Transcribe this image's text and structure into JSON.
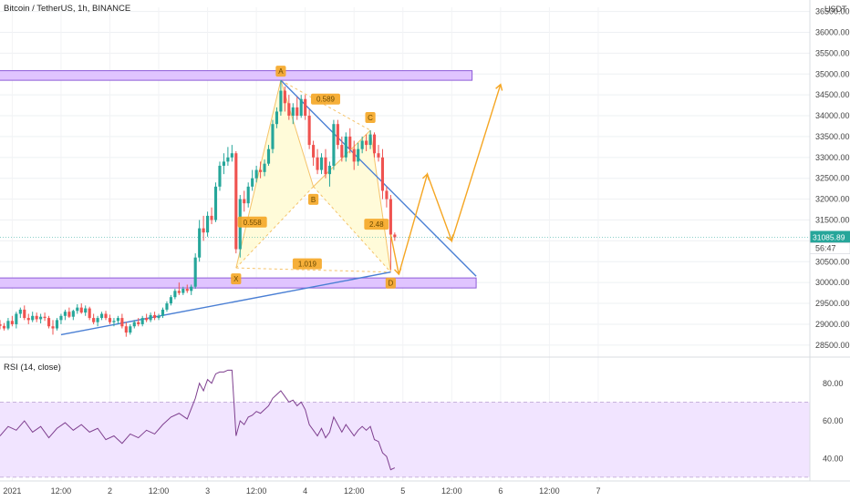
{
  "header": {
    "title": "Bitcoin / TetherUS, 1h, BINANCE",
    "currency": "USDT"
  },
  "chart_data": {
    "type": "candlestick",
    "price_ticks": [
      28500,
      29000,
      29500,
      30000,
      30500,
      31000,
      31500,
      32000,
      32500,
      33000,
      33500,
      34000,
      34500,
      35000,
      35500,
      36000,
      36500
    ],
    "price_tick_labels": [
      "28500.00",
      "29000.00",
      "29500.00",
      "30000.00",
      "30500.00",
      "31000.00",
      "31500.00",
      "32000.00",
      "32500.00",
      "33000.00",
      "33500.00",
      "34000.00",
      "34500.00",
      "35000.00",
      "35500.00",
      "36000.00",
      "36500.00"
    ],
    "price_range": [
      28300,
      36600
    ],
    "time_range_hours": [
      -3,
      196
    ],
    "time_ticks": [
      {
        "hour": 0,
        "label": "2021"
      },
      {
        "hour": 12,
        "label": "12:00"
      },
      {
        "hour": 24,
        "label": "2"
      },
      {
        "hour": 36,
        "label": "12:00"
      },
      {
        "hour": 48,
        "label": "3"
      },
      {
        "hour": 60,
        "label": "12:00"
      },
      {
        "hour": 72,
        "label": "4"
      },
      {
        "hour": 84,
        "label": "12:00"
      },
      {
        "hour": 96,
        "label": "5"
      },
      {
        "hour": 108,
        "label": "12:00"
      },
      {
        "hour": 120,
        "label": "6"
      },
      {
        "hour": 132,
        "label": "12:00"
      },
      {
        "hour": 144,
        "label": "7"
      }
    ],
    "candles": [
      {
        "t": -3,
        "o": 29000,
        "h": 29100,
        "l": 28880,
        "c": 28960
      },
      {
        "t": -2,
        "o": 28960,
        "h": 29030,
        "l": 28850,
        "c": 28900
      },
      {
        "t": -1,
        "o": 28900,
        "h": 29150,
        "l": 28860,
        "c": 29080
      },
      {
        "t": 0,
        "o": 29080,
        "h": 29200,
        "l": 28950,
        "c": 29000
      },
      {
        "t": 1,
        "o": 29000,
        "h": 29300,
        "l": 28900,
        "c": 29250
      },
      {
        "t": 2,
        "o": 29250,
        "h": 29400,
        "l": 29150,
        "c": 29350
      },
      {
        "t": 3,
        "o": 29350,
        "h": 29450,
        "l": 29100,
        "c": 29150
      },
      {
        "t": 4,
        "o": 29150,
        "h": 29250,
        "l": 29000,
        "c": 29100
      },
      {
        "t": 5,
        "o": 29100,
        "h": 29300,
        "l": 29050,
        "c": 29200
      },
      {
        "t": 6,
        "o": 29200,
        "h": 29280,
        "l": 29050,
        "c": 29120
      },
      {
        "t": 7,
        "o": 29120,
        "h": 29250,
        "l": 29020,
        "c": 29180
      },
      {
        "t": 8,
        "o": 29180,
        "h": 29280,
        "l": 29080,
        "c": 29150
      },
      {
        "t": 9,
        "o": 29150,
        "h": 29200,
        "l": 28900,
        "c": 28950
      },
      {
        "t": 10,
        "o": 28950,
        "h": 29100,
        "l": 28750,
        "c": 28900
      },
      {
        "t": 11,
        "o": 28900,
        "h": 29150,
        "l": 28850,
        "c": 29100
      },
      {
        "t": 12,
        "o": 29100,
        "h": 29250,
        "l": 29000,
        "c": 29200
      },
      {
        "t": 13,
        "o": 29200,
        "h": 29350,
        "l": 29100,
        "c": 29300
      },
      {
        "t": 14,
        "o": 29300,
        "h": 29400,
        "l": 29150,
        "c": 29180
      },
      {
        "t": 15,
        "o": 29180,
        "h": 29350,
        "l": 29100,
        "c": 29320
      },
      {
        "t": 16,
        "o": 29320,
        "h": 29480,
        "l": 29250,
        "c": 29400
      },
      {
        "t": 17,
        "o": 29400,
        "h": 29500,
        "l": 29250,
        "c": 29280
      },
      {
        "t": 18,
        "o": 29280,
        "h": 29450,
        "l": 29200,
        "c": 29380
      },
      {
        "t": 19,
        "o": 29380,
        "h": 29420,
        "l": 29100,
        "c": 29150
      },
      {
        "t": 20,
        "o": 29150,
        "h": 29250,
        "l": 29000,
        "c": 29050
      },
      {
        "t": 21,
        "o": 29050,
        "h": 29200,
        "l": 28950,
        "c": 29150
      },
      {
        "t": 22,
        "o": 29150,
        "h": 29300,
        "l": 29100,
        "c": 29250
      },
      {
        "t": 23,
        "o": 29250,
        "h": 29320,
        "l": 29100,
        "c": 29150
      },
      {
        "t": 24,
        "o": 29150,
        "h": 29230,
        "l": 29000,
        "c": 29050
      },
      {
        "t": 25,
        "o": 29050,
        "h": 29150,
        "l": 28950,
        "c": 29080
      },
      {
        "t": 26,
        "o": 29080,
        "h": 29200,
        "l": 29000,
        "c": 29150
      },
      {
        "t": 27,
        "o": 29150,
        "h": 29250,
        "l": 28900,
        "c": 28950
      },
      {
        "t": 28,
        "o": 28950,
        "h": 29050,
        "l": 28700,
        "c": 28800
      },
      {
        "t": 29,
        "o": 28800,
        "h": 29000,
        "l": 28750,
        "c": 28950
      },
      {
        "t": 30,
        "o": 28950,
        "h": 29100,
        "l": 28900,
        "c": 29050
      },
      {
        "t": 31,
        "o": 29050,
        "h": 29150,
        "l": 28950,
        "c": 29000
      },
      {
        "t": 32,
        "o": 29000,
        "h": 29200,
        "l": 28950,
        "c": 29150
      },
      {
        "t": 33,
        "o": 29150,
        "h": 29250,
        "l": 29050,
        "c": 29100
      },
      {
        "t": 34,
        "o": 29100,
        "h": 29280,
        "l": 29050,
        "c": 29220
      },
      {
        "t": 35,
        "o": 29220,
        "h": 29300,
        "l": 29100,
        "c": 29150
      },
      {
        "t": 36,
        "o": 29150,
        "h": 29250,
        "l": 29100,
        "c": 29200
      },
      {
        "t": 37,
        "o": 29200,
        "h": 29400,
        "l": 29150,
        "c": 29350
      },
      {
        "t": 38,
        "o": 29350,
        "h": 29550,
        "l": 29300,
        "c": 29500
      },
      {
        "t": 39,
        "o": 29500,
        "h": 29700,
        "l": 29450,
        "c": 29650
      },
      {
        "t": 40,
        "o": 29650,
        "h": 29850,
        "l": 29600,
        "c": 29800
      },
      {
        "t": 41,
        "o": 29800,
        "h": 30000,
        "l": 29700,
        "c": 29750
      },
      {
        "t": 42,
        "o": 29750,
        "h": 29900,
        "l": 29700,
        "c": 29850
      },
      {
        "t": 43,
        "o": 29850,
        "h": 29950,
        "l": 29750,
        "c": 29800
      },
      {
        "t": 44,
        "o": 29800,
        "h": 29950,
        "l": 29700,
        "c": 29900
      },
      {
        "t": 45,
        "o": 29900,
        "h": 30700,
        "l": 29850,
        "c": 30600
      },
      {
        "t": 46,
        "o": 30600,
        "h": 31500,
        "l": 30500,
        "c": 31300
      },
      {
        "t": 47,
        "o": 31300,
        "h": 31600,
        "l": 31000,
        "c": 31200
      },
      {
        "t": 48,
        "o": 31200,
        "h": 31700,
        "l": 31100,
        "c": 31600
      },
      {
        "t": 49,
        "o": 31600,
        "h": 31800,
        "l": 31400,
        "c": 31500
      },
      {
        "t": 50,
        "o": 31500,
        "h": 32400,
        "l": 31450,
        "c": 32300
      },
      {
        "t": 51,
        "o": 32300,
        "h": 32900,
        "l": 32200,
        "c": 32800
      },
      {
        "t": 52,
        "o": 32800,
        "h": 33100,
        "l": 32600,
        "c": 32900
      },
      {
        "t": 53,
        "o": 32900,
        "h": 33250,
        "l": 32800,
        "c": 33000
      },
      {
        "t": 54,
        "o": 33000,
        "h": 33300,
        "l": 32900,
        "c": 33100
      },
      {
        "t": 55,
        "o": 33100,
        "h": 33150,
        "l": 30700,
        "c": 30800
      },
      {
        "t": 56,
        "o": 30800,
        "h": 32100,
        "l": 30600,
        "c": 32000
      },
      {
        "t": 57,
        "o": 32000,
        "h": 32200,
        "l": 31700,
        "c": 31900
      },
      {
        "t": 58,
        "o": 31900,
        "h": 32400,
        "l": 31800,
        "c": 32300
      },
      {
        "t": 59,
        "o": 32300,
        "h": 32700,
        "l": 32200,
        "c": 32500
      },
      {
        "t": 60,
        "o": 32500,
        "h": 32800,
        "l": 32400,
        "c": 32700
      },
      {
        "t": 61,
        "o": 32700,
        "h": 32900,
        "l": 32500,
        "c": 32650
      },
      {
        "t": 62,
        "o": 32650,
        "h": 32950,
        "l": 32550,
        "c": 32850
      },
      {
        "t": 63,
        "o": 32850,
        "h": 33300,
        "l": 32800,
        "c": 33200
      },
      {
        "t": 64,
        "o": 33200,
        "h": 33900,
        "l": 33100,
        "c": 33800
      },
      {
        "t": 65,
        "o": 33800,
        "h": 34200,
        "l": 33700,
        "c": 34100
      },
      {
        "t": 66,
        "o": 34100,
        "h": 34850,
        "l": 34000,
        "c": 34600
      },
      {
        "t": 67,
        "o": 34600,
        "h": 34700,
        "l": 34100,
        "c": 34300
      },
      {
        "t": 68,
        "o": 34300,
        "h": 34500,
        "l": 33900,
        "c": 34000
      },
      {
        "t": 69,
        "o": 34000,
        "h": 34300,
        "l": 33800,
        "c": 34200
      },
      {
        "t": 70,
        "o": 34200,
        "h": 34450,
        "l": 33900,
        "c": 34000
      },
      {
        "t": 71,
        "o": 34000,
        "h": 34500,
        "l": 33950,
        "c": 34400
      },
      {
        "t": 72,
        "o": 34400,
        "h": 34500,
        "l": 33900,
        "c": 34000
      },
      {
        "t": 73,
        "o": 34000,
        "h": 34150,
        "l": 33200,
        "c": 33300
      },
      {
        "t": 74,
        "o": 33300,
        "h": 33400,
        "l": 32800,
        "c": 33000
      },
      {
        "t": 75,
        "o": 33000,
        "h": 33200,
        "l": 32600,
        "c": 32700
      },
      {
        "t": 76,
        "o": 32700,
        "h": 33100,
        "l": 32600,
        "c": 33000
      },
      {
        "t": 77,
        "o": 33000,
        "h": 33200,
        "l": 32500,
        "c": 32600
      },
      {
        "t": 78,
        "o": 32600,
        "h": 32900,
        "l": 32300,
        "c": 32800
      },
      {
        "t": 79,
        "o": 32800,
        "h": 33900,
        "l": 32700,
        "c": 33800
      },
      {
        "t": 80,
        "o": 33800,
        "h": 33900,
        "l": 33200,
        "c": 33300
      },
      {
        "t": 81,
        "o": 33300,
        "h": 33500,
        "l": 32900,
        "c": 33000
      },
      {
        "t": 82,
        "o": 33000,
        "h": 33600,
        "l": 32900,
        "c": 33500
      },
      {
        "t": 83,
        "o": 33500,
        "h": 33700,
        "l": 33100,
        "c": 33200
      },
      {
        "t": 84,
        "o": 33200,
        "h": 33400,
        "l": 32700,
        "c": 32900
      },
      {
        "t": 85,
        "o": 32900,
        "h": 33350,
        "l": 32800,
        "c": 33200
      },
      {
        "t": 86,
        "o": 33200,
        "h": 33500,
        "l": 33100,
        "c": 33400
      },
      {
        "t": 87,
        "o": 33400,
        "h": 33550,
        "l": 33150,
        "c": 33300
      },
      {
        "t": 88,
        "o": 33300,
        "h": 33650,
        "l": 33200,
        "c": 33550
      },
      {
        "t": 89,
        "o": 33550,
        "h": 33600,
        "l": 33000,
        "c": 33100
      },
      {
        "t": 90,
        "o": 33100,
        "h": 33300,
        "l": 32900,
        "c": 33000
      },
      {
        "t": 91,
        "o": 33000,
        "h": 33200,
        "l": 32000,
        "c": 32200
      },
      {
        "t": 92,
        "o": 32200,
        "h": 32300,
        "l": 31800,
        "c": 32000
      },
      {
        "t": 93,
        "o": 32000,
        "h": 32100,
        "l": 30300,
        "c": 31150
      },
      {
        "t": 94,
        "o": 31150,
        "h": 31200,
        "l": 31000,
        "c": 31085
      }
    ],
    "rsi": {
      "label": "RSI (14, close)",
      "ticks": [
        40,
        60,
        80
      ],
      "tick_labels": [
        "40.00",
        "60.00",
        "80.00"
      ],
      "range": [
        28,
        92
      ],
      "band": [
        30,
        70
      ],
      "values": [
        {
          "t": -3,
          "v": 52
        },
        {
          "t": -1,
          "v": 57
        },
        {
          "t": 1,
          "v": 55
        },
        {
          "t": 3,
          "v": 60
        },
        {
          "t": 5,
          "v": 54
        },
        {
          "t": 7,
          "v": 57
        },
        {
          "t": 9,
          "v": 51
        },
        {
          "t": 11,
          "v": 56
        },
        {
          "t": 13,
          "v": 59
        },
        {
          "t": 15,
          "v": 55
        },
        {
          "t": 17,
          "v": 58
        },
        {
          "t": 19,
          "v": 54
        },
        {
          "t": 21,
          "v": 56
        },
        {
          "t": 23,
          "v": 50
        },
        {
          "t": 25,
          "v": 52
        },
        {
          "t": 27,
          "v": 48
        },
        {
          "t": 29,
          "v": 53
        },
        {
          "t": 31,
          "v": 51
        },
        {
          "t": 33,
          "v": 55
        },
        {
          "t": 35,
          "v": 53
        },
        {
          "t": 37,
          "v": 58
        },
        {
          "t": 39,
          "v": 62
        },
        {
          "t": 41,
          "v": 64
        },
        {
          "t": 43,
          "v": 61
        },
        {
          "t": 45,
          "v": 72
        },
        {
          "t": 46,
          "v": 80
        },
        {
          "t": 47,
          "v": 76
        },
        {
          "t": 48,
          "v": 82
        },
        {
          "t": 49,
          "v": 80
        },
        {
          "t": 50,
          "v": 85
        },
        {
          "t": 51,
          "v": 86
        },
        {
          "t": 52,
          "v": 86
        },
        {
          "t": 53,
          "v": 87
        },
        {
          "t": 54,
          "v": 87
        },
        {
          "t": 55,
          "v": 52
        },
        {
          "t": 56,
          "v": 60
        },
        {
          "t": 57,
          "v": 58
        },
        {
          "t": 58,
          "v": 62
        },
        {
          "t": 59,
          "v": 63
        },
        {
          "t": 60,
          "v": 65
        },
        {
          "t": 61,
          "v": 64
        },
        {
          "t": 62,
          "v": 66
        },
        {
          "t": 63,
          "v": 68
        },
        {
          "t": 64,
          "v": 72
        },
        {
          "t": 65,
          "v": 74
        },
        {
          "t": 66,
          "v": 76
        },
        {
          "t": 67,
          "v": 73
        },
        {
          "t": 68,
          "v": 70
        },
        {
          "t": 69,
          "v": 71
        },
        {
          "t": 70,
          "v": 68
        },
        {
          "t": 71,
          "v": 70
        },
        {
          "t": 72,
          "v": 66
        },
        {
          "t": 73,
          "v": 58
        },
        {
          "t": 74,
          "v": 55
        },
        {
          "t": 75,
          "v": 52
        },
        {
          "t": 76,
          "v": 56
        },
        {
          "t": 77,
          "v": 51
        },
        {
          "t": 78,
          "v": 54
        },
        {
          "t": 79,
          "v": 62
        },
        {
          "t": 80,
          "v": 58
        },
        {
          "t": 81,
          "v": 54
        },
        {
          "t": 82,
          "v": 58
        },
        {
          "t": 83,
          "v": 55
        },
        {
          "t": 84,
          "v": 52
        },
        {
          "t": 85,
          "v": 55
        },
        {
          "t": 86,
          "v": 57
        },
        {
          "t": 87,
          "v": 55
        },
        {
          "t": 88,
          "v": 57
        },
        {
          "t": 89,
          "v": 50
        },
        {
          "t": 90,
          "v": 49
        },
        {
          "t": 91,
          "v": 43
        },
        {
          "t": 92,
          "v": 41
        },
        {
          "t": 93,
          "v": 34
        },
        {
          "t": 94,
          "v": 35
        }
      ]
    },
    "zones": [
      {
        "t1": -12,
        "t2": 113,
        "p_low": 34850,
        "p_high": 35080
      },
      {
        "t1": -11,
        "t2": 114,
        "p_low": 29870,
        "p_high": 30110
      }
    ],
    "trendlines": [
      {
        "t1": 66,
        "p1": 34850,
        "t2": 114,
        "p2": 30150
      },
      {
        "t1": 12,
        "p1": 28750,
        "t2": 93,
        "p2": 30250
      }
    ],
    "pattern": {
      "points": [
        {
          "label": "X",
          "t": 55,
          "p": 30350
        },
        {
          "label": "A",
          "t": 66,
          "p": 34850
        },
        {
          "label": "B",
          "t": 74,
          "p": 32300
        },
        {
          "label": "C",
          "t": 88,
          "p": 33650
        },
        {
          "label": "D",
          "t": 93,
          "p": 30250
        }
      ],
      "ratios": [
        {
          "text": "0.558",
          "t": 59,
          "p": 31450
        },
        {
          "text": "0.589",
          "t": 77,
          "p": 34400
        },
        {
          "text": "2.48",
          "t": 89.5,
          "p": 31400
        },
        {
          "text": "1.019",
          "t": 72.5,
          "p": 30450
        }
      ]
    },
    "projection": [
      {
        "t": 93,
        "p": 31150
      },
      {
        "t": 95,
        "p": 30200
      },
      {
        "t": 102,
        "p": 32600
      },
      {
        "t": 108,
        "p": 31000
      },
      {
        "t": 120,
        "p": 34750
      }
    ],
    "current_price": {
      "value": 31085,
      "label": "31085.89",
      "countdown": "56:47"
    },
    "colors": {
      "up": "#26a69a",
      "down": "#ef5350",
      "zone_fill": "#e0c4ff",
      "zone_stroke": "#8e5bd8",
      "trendline": "#4a7fd4",
      "pattern_fill": "#fffbd9",
      "pattern_stroke": "#f5c36a",
      "projection": "#f5a623",
      "label_bg": "#f5a623",
      "rsi_line": "#7e3f8f",
      "rsi_band": "#f1e4ff",
      "price_tag": "#26a69a"
    }
  }
}
